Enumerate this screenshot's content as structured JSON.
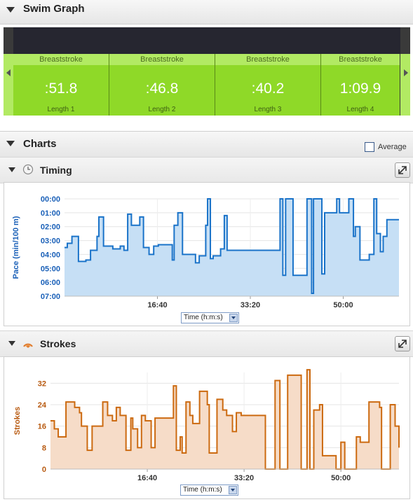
{
  "swim_graph": {
    "title": "Swim Graph",
    "lengths": [
      {
        "stroke": "Breaststroke",
        "time": ":51.8",
        "label": "Length 1"
      },
      {
        "stroke": "Breaststroke",
        "time": ":46.8",
        "label": "Length 2"
      },
      {
        "stroke": "Breaststroke",
        "time": ":40.2",
        "label": "Length 3"
      },
      {
        "stroke": "Breaststroke",
        "time": "1:09.9",
        "label": "Length 4"
      }
    ]
  },
  "charts": {
    "title": "Charts",
    "average_label": "Average",
    "average_checked": false
  },
  "timing": {
    "title": "Timing",
    "axis_select": "Time (h:m:s)"
  },
  "strokes": {
    "title": "Strokes",
    "axis_select": "Time (h:m:s)"
  },
  "colors": {
    "timing_line": "#1a73c9",
    "timing_fill": "#c6dff5",
    "strokes_line": "#cc6a10",
    "strokes_fill": "#f6dcc8",
    "lane_green": "#8fd928"
  },
  "chart_data": [
    {
      "type": "area",
      "title": "Timing",
      "ylabel": "Pace (min/100 m)",
      "xlabel": "Time (h:m:s)",
      "x_ticks": [
        {
          "t": 1000,
          "label": "16:40"
        },
        {
          "t": 2000,
          "label": "33:20"
        },
        {
          "t": 3000,
          "label": "50:00"
        }
      ],
      "y_ticks": [
        {
          "v": 0,
          "label": "00:00"
        },
        {
          "v": 1,
          "label": "01:00"
        },
        {
          "v": 2,
          "label": "02:00"
        },
        {
          "v": 3,
          "label": "03:00"
        },
        {
          "v": 4,
          "label": "04:00"
        },
        {
          "v": 5,
          "label": "05:00"
        },
        {
          "v": 6,
          "label": "06:00"
        },
        {
          "v": 7,
          "label": "07:00"
        }
      ],
      "ylim": [
        0,
        7
      ],
      "xlim": [
        0,
        3600
      ],
      "y_inverted": true,
      "grid": true,
      "series": [
        {
          "steps": [
            [
              0,
              3.5
            ],
            [
              30,
              3.2
            ],
            [
              80,
              2.7
            ],
            [
              150,
              4.5
            ],
            [
              230,
              4.4
            ],
            [
              280,
              3.7
            ],
            [
              350,
              2.7
            ],
            [
              370,
              1.3
            ],
            [
              420,
              3.4
            ],
            [
              520,
              3.6
            ],
            [
              600,
              3.4
            ],
            [
              640,
              3.7
            ],
            [
              680,
              1.1
            ],
            [
              720,
              1.9
            ],
            [
              810,
              1.3
            ],
            [
              850,
              3.5
            ],
            [
              910,
              4.0
            ],
            [
              960,
              3.4
            ],
            [
              1010,
              3.3
            ],
            [
              1160,
              4.4
            ],
            [
              1180,
              1.9
            ],
            [
              1220,
              1.0
            ],
            [
              1270,
              4.0
            ],
            [
              1410,
              4.6
            ],
            [
              1450,
              4.1
            ],
            [
              1520,
              1.9
            ],
            [
              1540,
              0.0
            ],
            [
              1570,
              4.3
            ],
            [
              1600,
              4.1
            ],
            [
              1680,
              3.6
            ],
            [
              1720,
              1.2
            ],
            [
              1750,
              3.7
            ],
            [
              2320,
              0.0
            ],
            [
              2350,
              5.5
            ],
            [
              2380,
              0.0
            ],
            [
              2460,
              5.5
            ],
            [
              2610,
              0.0
            ],
            [
              2660,
              6.8
            ],
            [
              2680,
              0.0
            ],
            [
              2770,
              5.4
            ],
            [
              2800,
              1.0
            ],
            [
              2930,
              0.0
            ],
            [
              2960,
              1.0
            ],
            [
              3060,
              0.0
            ],
            [
              3110,
              2.7
            ],
            [
              3130,
              2.0
            ],
            [
              3180,
              4.4
            ],
            [
              3280,
              4.0
            ],
            [
              3330,
              0.0
            ],
            [
              3360,
              2.5
            ],
            [
              3400,
              3.8
            ],
            [
              3430,
              2.7
            ],
            [
              3470,
              1.5
            ],
            [
              3600,
              1.5
            ]
          ]
        }
      ]
    },
    {
      "type": "area",
      "title": "Strokes",
      "ylabel": "Strokes",
      "xlabel": "Time (h:m:s)",
      "x_ticks": [
        {
          "t": 1000,
          "label": "16:40"
        },
        {
          "t": 2000,
          "label": "33:20"
        },
        {
          "t": 3000,
          "label": "50:00"
        }
      ],
      "y_ticks": [
        {
          "v": 0,
          "label": "0"
        },
        {
          "v": 8,
          "label": "8"
        },
        {
          "v": 16,
          "label": "16"
        },
        {
          "v": 24,
          "label": "24"
        },
        {
          "v": 32,
          "label": "32"
        }
      ],
      "ylim": [
        0,
        36
      ],
      "xlim": [
        0,
        3600
      ],
      "grid": true,
      "series": [
        {
          "steps": [
            [
              0,
              18
            ],
            [
              40,
              15
            ],
            [
              80,
              12
            ],
            [
              160,
              25
            ],
            [
              250,
              23
            ],
            [
              300,
              21
            ],
            [
              320,
              16
            ],
            [
              380,
              7
            ],
            [
              430,
              16
            ],
            [
              540,
              25
            ],
            [
              590,
              20
            ],
            [
              640,
              18
            ],
            [
              680,
              23
            ],
            [
              720,
              20
            ],
            [
              780,
              7
            ],
            [
              830,
              19
            ],
            [
              850,
              15
            ],
            [
              900,
              8
            ],
            [
              940,
              20
            ],
            [
              980,
              18
            ],
            [
              1040,
              8
            ],
            [
              1080,
              19
            ],
            [
              1160,
              19
            ],
            [
              1270,
              31
            ],
            [
              1300,
              7
            ],
            [
              1340,
              12
            ],
            [
              1360,
              6
            ],
            [
              1400,
              25
            ],
            [
              1440,
              20
            ],
            [
              1470,
              17
            ],
            [
              1540,
              29
            ],
            [
              1620,
              24
            ],
            [
              1640,
              6
            ],
            [
              1720,
              26
            ],
            [
              1780,
              22
            ],
            [
              1820,
              20
            ],
            [
              1880,
              14
            ],
            [
              1920,
              21
            ],
            [
              1970,
              20
            ],
            [
              2220,
              0
            ],
            [
              2320,
              33
            ],
            [
              2370,
              0
            ],
            [
              2400,
              0
            ],
            [
              2450,
              35
            ],
            [
              2590,
              0
            ],
            [
              2650,
              37
            ],
            [
              2680,
              0
            ],
            [
              2720,
              22
            ],
            [
              2780,
              24
            ],
            [
              2810,
              5
            ],
            [
              2950,
              0
            ],
            [
              3000,
              10
            ],
            [
              3040,
              0
            ],
            [
              3160,
              12
            ],
            [
              3200,
              10
            ],
            [
              3290,
              25
            ],
            [
              3400,
              23
            ],
            [
              3420,
              0
            ],
            [
              3510,
              24
            ],
            [
              3560,
              16
            ],
            [
              3600,
              8
            ]
          ]
        }
      ]
    }
  ]
}
